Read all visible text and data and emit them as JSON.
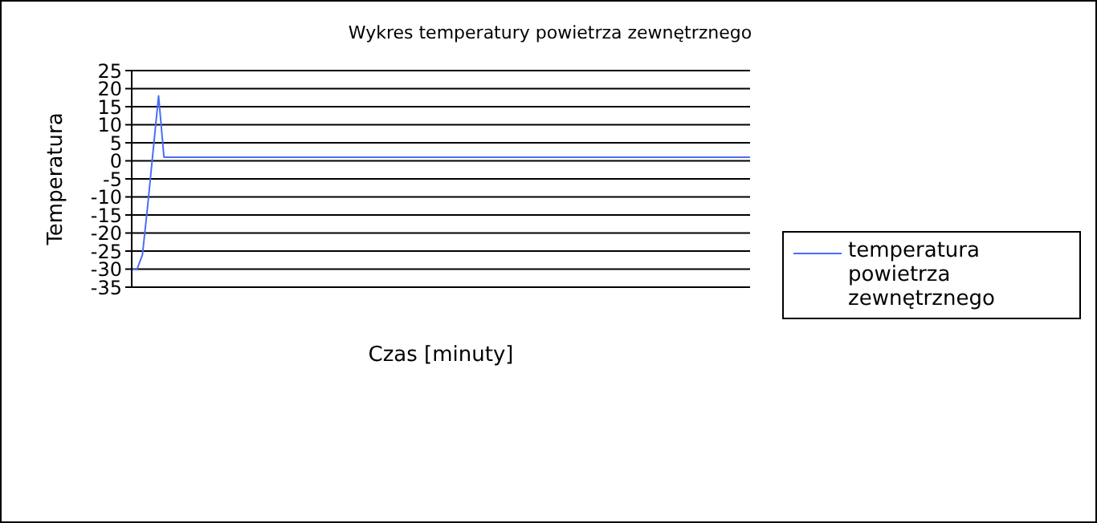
{
  "chart_data": {
    "type": "line",
    "title": "Wykres  temperatury powietrza zewnętrznego",
    "xlabel": "Czas [minuty]",
    "ylabel": "Temperatura",
    "categories": [
      null,
      null,
      null,
      null,
      null,
      null,
      null,
      null,
      null,
      null,
      null,
      null,
      null,
      null,
      null,
      null,
      null,
      null,
      null,
      null,
      null,
      null,
      null,
      null,
      null,
      null,
      null,
      null,
      null,
      null,
      null,
      null,
      null,
      null,
      null,
      null,
      null,
      null,
      null,
      null,
      null,
      null,
      null,
      null,
      null,
      null,
      null,
      null,
      null,
      null,
      null,
      null,
      null,
      null,
      null,
      null,
      null,
      null,
      null,
      null,
      null,
      null,
      null,
      null,
      null,
      null,
      null,
      null,
      null,
      null,
      null,
      null,
      null,
      null,
      null,
      null,
      null,
      null,
      null,
      null,
      null,
      null,
      null,
      null,
      null,
      null,
      null,
      null,
      null,
      null,
      null,
      null,
      null,
      null,
      null,
      null,
      null,
      null,
      null,
      null,
      null,
      null,
      null,
      null,
      null,
      null,
      null,
      null,
      null,
      null,
      null,
      null,
      null,
      null,
      null,
      null
    ],
    "series": [
      {
        "name": "temperatura powietrza zewnętrznego",
        "color": "#4a6cf7",
        "values": [
          -30,
          -30,
          -26,
          -12,
          3,
          18,
          1,
          1,
          1,
          1,
          1,
          1,
          1,
          1,
          1,
          1,
          1,
          1,
          1,
          1,
          1,
          1,
          1,
          1,
          1,
          1,
          1,
          1,
          1,
          1,
          1,
          1,
          1,
          1,
          1,
          1,
          1,
          1,
          1,
          1,
          1,
          1,
          1,
          1,
          1,
          1,
          1,
          1,
          1,
          1,
          1,
          1,
          1,
          1,
          1,
          1,
          1,
          1,
          1,
          1,
          1,
          1,
          1,
          1,
          1,
          1,
          1,
          1,
          1,
          1,
          1,
          1,
          1,
          1,
          1,
          1,
          1,
          1,
          1,
          1,
          1,
          1,
          1,
          1,
          1,
          1,
          1,
          1,
          1,
          1,
          1,
          1,
          1,
          1,
          1,
          1,
          1,
          1,
          1,
          1,
          1,
          1,
          1,
          1,
          1,
          1,
          1,
          1,
          1,
          1,
          1,
          1,
          1,
          1,
          1,
          1
        ]
      }
    ],
    "ylim": [
      -35,
      25
    ],
    "yticks": [
      -35,
      -30,
      -25,
      -20,
      -15,
      -10,
      -5,
      0,
      5,
      10,
      15,
      20,
      25
    ],
    "grid": "y",
    "legend": "right",
    "tick_labels": "y"
  }
}
